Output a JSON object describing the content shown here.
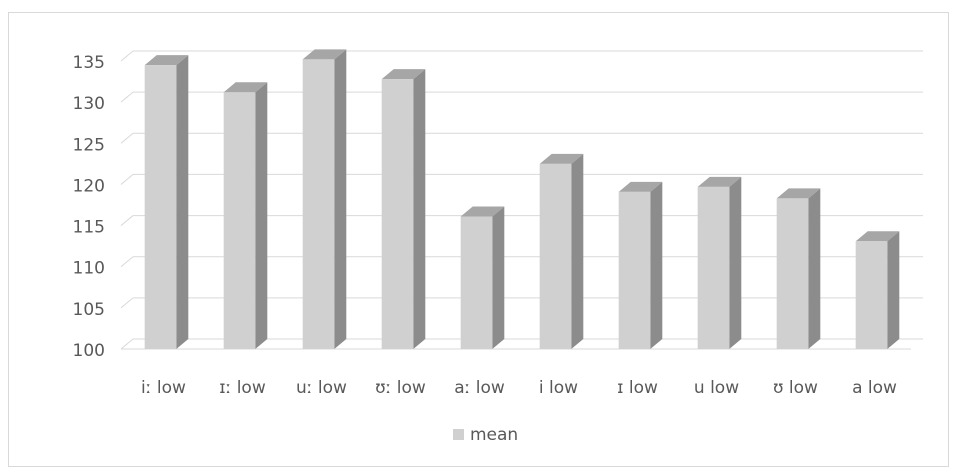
{
  "chart_data": {
    "type": "bar",
    "title": "",
    "xlabel": "",
    "ylabel": "",
    "categories": [
      "iː low",
      "ɪː low",
      "uː low",
      "ʊː low",
      "aː low",
      "i low",
      "ɪ low",
      "u low",
      "ʊ low",
      "a low"
    ],
    "series": [
      {
        "name": "mean",
        "values": [
          134.5,
          131.2,
          135.2,
          132.8,
          116.1,
          122.5,
          119.1,
          119.7,
          118.3,
          113.1
        ]
      }
    ],
    "ylim": [
      100,
      135
    ],
    "yticks": [
      100,
      105,
      110,
      115,
      120,
      125,
      130,
      135
    ],
    "grid": true,
    "legend_position": "bottom",
    "style": "3d-column",
    "colors": {
      "bar_front": "#d0d0d0",
      "bar_side": "#8c8c8c",
      "bar_top": "#a6a6a6",
      "grid": "#d9d9d9"
    }
  }
}
